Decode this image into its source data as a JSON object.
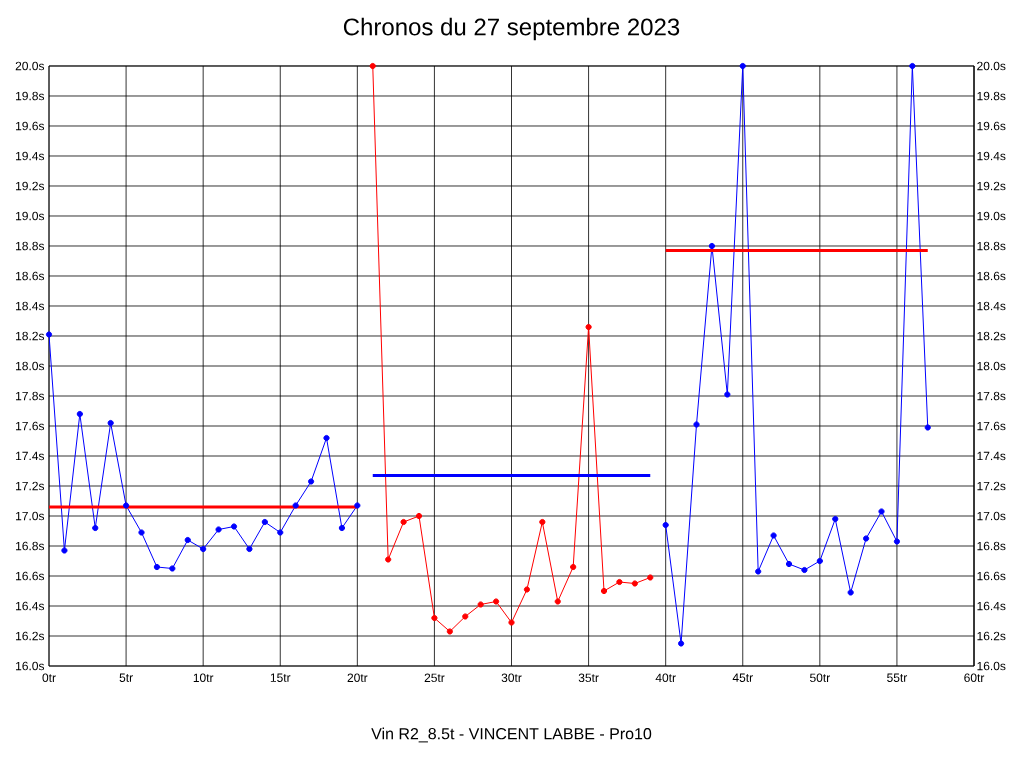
{
  "chart_data": {
    "type": "line",
    "title": "Chronos du 27 septembre 2023",
    "xlabel": "Vin R2_8.5t - VINCENT LABBE - Pro10",
    "series": [
      {
        "color": "#0000ff",
        "marker": "circle",
        "x": [
          0,
          1,
          2,
          3,
          4,
          5,
          6,
          7,
          8,
          9,
          10,
          11,
          12,
          13,
          14,
          15,
          16,
          17,
          18,
          19,
          20
        ],
        "values": [
          18.21,
          16.77,
          17.68,
          16.92,
          17.62,
          17.07,
          16.89,
          16.66,
          16.65,
          16.84,
          16.78,
          16.91,
          16.93,
          16.78,
          16.96,
          16.89,
          17.07,
          17.23,
          17.52,
          16.92,
          17.07
        ]
      },
      {
        "color": "#ff0000",
        "marker": "circle",
        "x": [
          21,
          22,
          23,
          24,
          25,
          26,
          27,
          28,
          29,
          30,
          31,
          32,
          33,
          34,
          35,
          36,
          37,
          38,
          39
        ],
        "values": [
          20.0,
          16.71,
          16.96,
          17.0,
          16.32,
          16.23,
          16.33,
          16.41,
          16.43,
          16.29,
          16.51,
          16.96,
          16.43,
          16.66,
          18.26,
          16.5,
          16.56,
          16.55,
          16.59
        ]
      },
      {
        "color": "#0000ff",
        "marker": "circle",
        "x": [
          40,
          41,
          42,
          43,
          44,
          45,
          46,
          47,
          48,
          49,
          50,
          51,
          52,
          53,
          54,
          55,
          56,
          57
        ],
        "values": [
          16.94,
          16.15,
          17.61,
          18.8,
          17.81,
          20.0,
          16.63,
          16.87,
          16.68,
          16.64,
          16.7,
          16.98,
          16.49,
          16.85,
          17.03,
          16.83,
          20.0,
          17.59
        ]
      },
      {
        "color": "#ff0000",
        "marker": "none",
        "x": [
          0,
          20
        ],
        "values": [
          17.06,
          17.06
        ]
      },
      {
        "color": "#0000ff",
        "marker": "none",
        "x": [
          21,
          39
        ],
        "values": [
          17.27,
          17.27
        ]
      },
      {
        "color": "#ff0000",
        "marker": "none",
        "x": [
          40,
          57
        ],
        "values": [
          18.77,
          18.77
        ]
      }
    ],
    "xlim": [
      0,
      60
    ],
    "xticks": [
      {
        "value": 0,
        "label": "0tr"
      },
      {
        "value": 5,
        "label": "5tr"
      },
      {
        "value": 10,
        "label": "10tr"
      },
      {
        "value": 15,
        "label": "15tr"
      },
      {
        "value": 20,
        "label": "20tr"
      },
      {
        "value": 25,
        "label": "25tr"
      },
      {
        "value": 30,
        "label": "30tr"
      },
      {
        "value": 35,
        "label": "35tr"
      },
      {
        "value": 40,
        "label": "40tr"
      },
      {
        "value": 45,
        "label": "45tr"
      },
      {
        "value": 50,
        "label": "50tr"
      },
      {
        "value": 55,
        "label": "55tr"
      },
      {
        "value": 60,
        "label": "60tr"
      }
    ],
    "ylim": [
      16.0,
      20.0
    ],
    "yticks": [
      {
        "value": 16.0,
        "label": "16.0s"
      },
      {
        "value": 16.2,
        "label": "16.2s"
      },
      {
        "value": 16.4,
        "label": "16.4s"
      },
      {
        "value": 16.6,
        "label": "16.6s"
      },
      {
        "value": 16.8,
        "label": "16.8s"
      },
      {
        "value": 17.0,
        "label": "17.0s"
      },
      {
        "value": 17.2,
        "label": "17.2s"
      },
      {
        "value": 17.4,
        "label": "17.4s"
      },
      {
        "value": 17.6,
        "label": "17.6s"
      },
      {
        "value": 17.8,
        "label": "17.8s"
      },
      {
        "value": 18.0,
        "label": "18.0s"
      },
      {
        "value": 18.2,
        "label": "18.2s"
      },
      {
        "value": 18.4,
        "label": "18.4s"
      },
      {
        "value": 18.6,
        "label": "18.6s"
      },
      {
        "value": 18.8,
        "label": "18.8s"
      },
      {
        "value": 19.0,
        "label": "19.0s"
      },
      {
        "value": 19.2,
        "label": "19.2s"
      },
      {
        "value": 19.4,
        "label": "19.4s"
      },
      {
        "value": 19.6,
        "label": "19.6s"
      },
      {
        "value": 19.8,
        "label": "19.8s"
      },
      {
        "value": 20.0,
        "label": "20.0s"
      }
    ],
    "y2lim": [
      16.0,
      20.0
    ],
    "y2ticks": [
      {
        "value": 16.0,
        "label": "16.0s"
      },
      {
        "value": 16.2,
        "label": "16.2s"
      },
      {
        "value": 16.4,
        "label": "16.4s"
      },
      {
        "value": 16.6,
        "label": "16.6s"
      },
      {
        "value": 16.8,
        "label": "16.8s"
      },
      {
        "value": 17.0,
        "label": "17.0s"
      },
      {
        "value": 17.2,
        "label": "17.2s"
      },
      {
        "value": 17.4,
        "label": "17.4s"
      },
      {
        "value": 17.6,
        "label": "17.6s"
      },
      {
        "value": 17.8,
        "label": "17.8s"
      },
      {
        "value": 18.0,
        "label": "18.0s"
      },
      {
        "value": 18.2,
        "label": "18.2s"
      },
      {
        "value": 18.4,
        "label": "18.4s"
      },
      {
        "value": 18.6,
        "label": "18.6s"
      },
      {
        "value": 18.8,
        "label": "18.8s"
      },
      {
        "value": 19.0,
        "label": "19.0s"
      },
      {
        "value": 19.2,
        "label": "19.2s"
      },
      {
        "value": 19.4,
        "label": "19.4s"
      },
      {
        "value": 19.6,
        "label": "19.6s"
      },
      {
        "value": 19.8,
        "label": "19.8s"
      },
      {
        "value": 20.0,
        "label": "20.0s"
      }
    ],
    "grid": true
  }
}
